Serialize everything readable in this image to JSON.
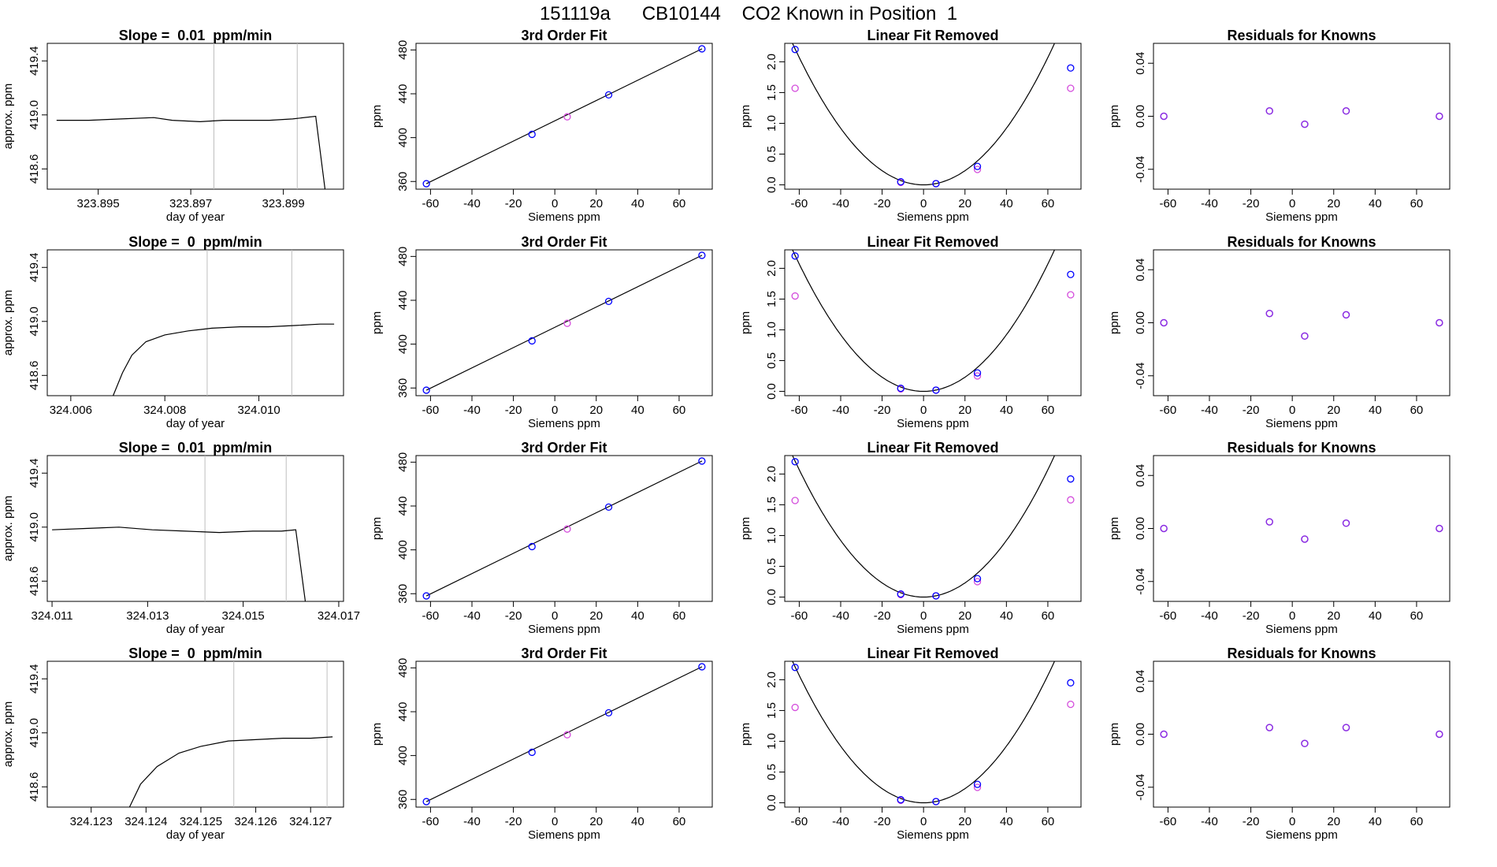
{
  "page": {
    "title": "151119a      CB10144    CO2 Known in Position  1"
  },
  "colors": {
    "axis": "#000000",
    "grid_line": "#bebebe",
    "fit_line": "#000000",
    "point_blue": "#0000ff",
    "point_magenta": "#d44ddc",
    "point_cyan": "#00b4d2",
    "point_purple": "#8a2be2"
  },
  "chart_data": [
    {
      "type": "line",
      "row": 1,
      "title": "Slope =  0.01  ppm/min",
      "xlabel": "day of year",
      "ylabel": "approx. ppm",
      "xlim": [
        323.8939,
        323.9003
      ],
      "ylim": [
        418.45,
        419.53
      ],
      "xticks": [
        "323.895",
        "323.897",
        "323.899"
      ],
      "xtick_values": [
        323.895,
        323.897,
        323.899
      ],
      "yticks": [
        "418.6",
        "419.0",
        "419.4"
      ],
      "ytick_values": [
        418.6,
        419.0,
        419.4
      ],
      "vlines": [
        323.8975,
        323.8993
      ],
      "series": [
        {
          "points": [
            [
              323.8941,
              418.96
            ],
            [
              323.8948,
              418.96
            ],
            [
              323.8955,
              418.97
            ],
            [
              323.8962,
              418.98
            ],
            [
              323.8966,
              418.96
            ],
            [
              323.8972,
              418.95
            ],
            [
              323.8977,
              418.96
            ],
            [
              323.8982,
              418.96
            ],
            [
              323.8987,
              418.96
            ],
            [
              323.8992,
              418.97
            ],
            [
              323.8997,
              418.99
            ],
            [
              323.8999,
              418.45
            ]
          ]
        }
      ]
    },
    {
      "type": "scatter",
      "row": 1,
      "title": "3rd Order Fit",
      "xlabel": "Siemens ppm",
      "ylabel": "ppm",
      "xlim": [
        -67,
        76
      ],
      "ylim": [
        353,
        486
      ],
      "xticks": [
        "-60",
        "-40",
        "-20",
        "0",
        "20",
        "40",
        "60"
      ],
      "xtick_values": [
        -60,
        -40,
        -20,
        0,
        20,
        40,
        60
      ],
      "yticks": [
        "360",
        "400",
        "440",
        "480"
      ],
      "ytick_values": [
        360,
        400,
        440,
        480
      ],
      "line": [
        [
          -62,
          358
        ],
        [
          71,
          481
        ]
      ],
      "points_blue": [
        [
          -62,
          358
        ],
        [
          -11,
          403
        ],
        [
          26,
          439
        ],
        [
          71,
          481
        ]
      ],
      "points_magenta": [
        [
          6,
          419
        ]
      ]
    },
    {
      "type": "scatter",
      "row": 1,
      "title": "Linear Fit Removed",
      "xlabel": "Siemens ppm",
      "ylabel": "ppm",
      "xlim": [
        -67,
        76
      ],
      "ylim": [
        -0.07,
        2.3
      ],
      "xticks": [
        "-60",
        "-40",
        "-20",
        "0",
        "20",
        "40",
        "60"
      ],
      "xtick_values": [
        -60,
        -40,
        -20,
        0,
        20,
        40,
        60
      ],
      "yticks": [
        "0.0",
        "0.5",
        "1.0",
        "1.5",
        "2.0"
      ],
      "ytick_values": [
        0,
        0.5,
        1,
        1.5,
        2
      ],
      "curve_coefficient": 0.000575,
      "points_blue": [
        [
          -62,
          2.2
        ],
        [
          -11,
          0.05
        ],
        [
          6,
          0.02
        ],
        [
          26,
          0.3
        ],
        [
          71,
          1.9
        ]
      ],
      "points_magenta": [
        [
          -62,
          1.57
        ],
        [
          -11,
          0.04
        ],
        [
          6,
          0.02
        ],
        [
          26,
          0.25
        ],
        [
          71,
          1.57
        ]
      ]
    },
    {
      "type": "scatter",
      "row": 1,
      "title": "Residuals for Knowns",
      "xlabel": "Siemens ppm",
      "ylabel": "ppm",
      "xlim": [
        -67,
        76
      ],
      "ylim": [
        -0.055,
        0.055
      ],
      "xticks": [
        "-60",
        "-40",
        "-20",
        "0",
        "20",
        "40",
        "60"
      ],
      "xtick_values": [
        -60,
        -40,
        -20,
        0,
        20,
        40,
        60
      ],
      "yticks": [
        "-0.04",
        "0.00",
        "0.04"
      ],
      "ytick_values": [
        -0.04,
        0,
        0.04
      ],
      "points_purple": [
        [
          -62,
          0.0
        ],
        [
          -11,
          0.004
        ],
        [
          6,
          -0.006
        ],
        [
          26,
          0.004
        ],
        [
          71,
          0.0
        ]
      ]
    },
    {
      "type": "line",
      "row": 2,
      "title": "Slope =  0  ppm/min",
      "xlabel": "day of year",
      "ylabel": "approx. ppm",
      "xlim": [
        324.0055,
        324.0118
      ],
      "ylim": [
        418.45,
        419.53
      ],
      "xticks": [
        "324.006",
        "324.008",
        "324.010"
      ],
      "xtick_values": [
        324.006,
        324.008,
        324.01
      ],
      "yticks": [
        "418.6",
        "419.0",
        "419.4"
      ],
      "ytick_values": [
        418.6,
        419.0,
        419.4
      ],
      "vlines": [
        324.0089,
        324.0107
      ],
      "series": [
        {
          "points": [
            [
              324.0069,
              418.45
            ],
            [
              324.0071,
              418.62
            ],
            [
              324.0073,
              418.75
            ],
            [
              324.0076,
              418.85
            ],
            [
              324.008,
              418.9
            ],
            [
              324.0085,
              418.93
            ],
            [
              324.009,
              418.95
            ],
            [
              324.0096,
              418.96
            ],
            [
              324.0102,
              418.96
            ],
            [
              324.0108,
              418.97
            ],
            [
              324.0113,
              418.98
            ],
            [
              324.0116,
              418.98
            ]
          ]
        }
      ]
    },
    {
      "type": "scatter",
      "row": 2,
      "title": "3rd Order Fit",
      "xlabel": "Siemens ppm",
      "ylabel": "ppm",
      "xlim": [
        -67,
        76
      ],
      "ylim": [
        353,
        486
      ],
      "xticks": [
        "-60",
        "-40",
        "-20",
        "0",
        "20",
        "40",
        "60"
      ],
      "xtick_values": [
        -60,
        -40,
        -20,
        0,
        20,
        40,
        60
      ],
      "yticks": [
        "360",
        "400",
        "440",
        "480"
      ],
      "ytick_values": [
        360,
        400,
        440,
        480
      ],
      "line": [
        [
          -62,
          358
        ],
        [
          71,
          481
        ]
      ],
      "points_blue": [
        [
          -62,
          358
        ],
        [
          -11,
          403
        ],
        [
          26,
          439
        ],
        [
          71,
          481
        ]
      ],
      "points_magenta": [
        [
          6,
          419
        ]
      ]
    },
    {
      "type": "scatter",
      "row": 2,
      "title": "Linear Fit Removed",
      "xlabel": "Siemens ppm",
      "ylabel": "ppm",
      "xlim": [
        -67,
        76
      ],
      "ylim": [
        -0.07,
        2.3
      ],
      "xticks": [
        "-60",
        "-40",
        "-20",
        "0",
        "20",
        "40",
        "60"
      ],
      "xtick_values": [
        -60,
        -40,
        -20,
        0,
        20,
        40,
        60
      ],
      "yticks": [
        "0.0",
        "0.5",
        "1.0",
        "1.5",
        "2.0"
      ],
      "ytick_values": [
        0,
        0.5,
        1,
        1.5,
        2
      ],
      "curve_coefficient": 0.000575,
      "points_blue": [
        [
          -62,
          2.2
        ],
        [
          -11,
          0.05
        ],
        [
          6,
          0.02
        ],
        [
          26,
          0.3
        ],
        [
          71,
          1.9
        ]
      ],
      "points_magenta": [
        [
          -62,
          1.55
        ],
        [
          -11,
          0.04
        ],
        [
          6,
          0.02
        ],
        [
          26,
          0.25
        ],
        [
          71,
          1.57
        ]
      ]
    },
    {
      "type": "scatter",
      "row": 2,
      "title": "Residuals for Knowns",
      "xlabel": "Siemens ppm",
      "ylabel": "ppm",
      "xlim": [
        -67,
        76
      ],
      "ylim": [
        -0.055,
        0.055
      ],
      "xticks": [
        "-60",
        "-40",
        "-20",
        "0",
        "20",
        "40",
        "60"
      ],
      "xtick_values": [
        -60,
        -40,
        -20,
        0,
        20,
        40,
        60
      ],
      "yticks": [
        "-0.04",
        "0.00",
        "0.04"
      ],
      "ytick_values": [
        -0.04,
        0,
        0.04
      ],
      "points_purple": [
        [
          -62,
          0.0
        ],
        [
          -11,
          0.007
        ],
        [
          6,
          -0.01
        ],
        [
          26,
          0.006
        ],
        [
          71,
          0.0
        ]
      ]
    },
    {
      "type": "line",
      "row": 3,
      "title": "Slope =  0.01  ppm/min",
      "xlabel": "day of year",
      "ylabel": "approx. ppm",
      "xlim": [
        324.0109,
        324.0171
      ],
      "ylim": [
        418.45,
        419.53
      ],
      "xticks": [
        "324.011",
        "324.013",
        "324.015",
        "324.017"
      ],
      "xtick_values": [
        324.011,
        324.013,
        324.015,
        324.017
      ],
      "yticks": [
        "418.6",
        "419.0",
        "419.4"
      ],
      "ytick_values": [
        418.6,
        419.0,
        419.4
      ],
      "vlines": [
        324.0142,
        324.0159
      ],
      "series": [
        {
          "points": [
            [
              324.011,
              418.98
            ],
            [
              324.0117,
              418.99
            ],
            [
              324.0124,
              419.0
            ],
            [
              324.0131,
              418.98
            ],
            [
              324.0138,
              418.97
            ],
            [
              324.0145,
              418.96
            ],
            [
              324.0152,
              418.97
            ],
            [
              324.0158,
              418.97
            ],
            [
              324.0161,
              418.98
            ],
            [
              324.0163,
              418.45
            ]
          ]
        }
      ]
    },
    {
      "type": "scatter",
      "row": 3,
      "title": "3rd Order Fit",
      "xlabel": "Siemens ppm",
      "ylabel": "ppm",
      "xlim": [
        -67,
        76
      ],
      "ylim": [
        353,
        486
      ],
      "xticks": [
        "-60",
        "-40",
        "-20",
        "0",
        "20",
        "40",
        "60"
      ],
      "xtick_values": [
        -60,
        -40,
        -20,
        0,
        20,
        40,
        60
      ],
      "yticks": [
        "360",
        "400",
        "440",
        "480"
      ],
      "ytick_values": [
        360,
        400,
        440,
        480
      ],
      "line": [
        [
          -62,
          358
        ],
        [
          71,
          481
        ]
      ],
      "points_blue": [
        [
          -62,
          358
        ],
        [
          -11,
          403
        ],
        [
          26,
          439
        ],
        [
          71,
          481
        ]
      ],
      "points_magenta": [
        [
          6,
          419
        ]
      ]
    },
    {
      "type": "scatter",
      "row": 3,
      "title": "Linear Fit Removed",
      "xlabel": "Siemens ppm",
      "ylabel": "ppm",
      "xlim": [
        -67,
        76
      ],
      "ylim": [
        -0.07,
        2.3
      ],
      "xticks": [
        "-60",
        "-40",
        "-20",
        "0",
        "20",
        "40",
        "60"
      ],
      "xtick_values": [
        -60,
        -40,
        -20,
        0,
        20,
        40,
        60
      ],
      "yticks": [
        "0.0",
        "0.5",
        "1.0",
        "1.5",
        "2.0"
      ],
      "ytick_values": [
        0,
        0.5,
        1,
        1.5,
        2
      ],
      "curve_coefficient": 0.000575,
      "points_blue": [
        [
          -62,
          2.2
        ],
        [
          -11,
          0.05
        ],
        [
          6,
          0.02
        ],
        [
          26,
          0.3
        ],
        [
          71,
          1.92
        ]
      ],
      "points_magenta": [
        [
          -62,
          1.57
        ],
        [
          -11,
          0.04
        ],
        [
          6,
          0.02
        ],
        [
          26,
          0.25
        ],
        [
          71,
          1.58
        ]
      ]
    },
    {
      "type": "scatter",
      "row": 3,
      "title": "Residuals for Knowns",
      "xlabel": "Siemens ppm",
      "ylabel": "ppm",
      "xlim": [
        -67,
        76
      ],
      "ylim": [
        -0.055,
        0.055
      ],
      "xticks": [
        "-60",
        "-40",
        "-20",
        "0",
        "20",
        "40",
        "60"
      ],
      "xtick_values": [
        -60,
        -40,
        -20,
        0,
        20,
        40,
        60
      ],
      "yticks": [
        "-0.04",
        "0.00",
        "0.04"
      ],
      "ytick_values": [
        -0.04,
        0,
        0.04
      ],
      "points_purple": [
        [
          -62,
          0.0
        ],
        [
          -11,
          0.005
        ],
        [
          6,
          -0.008
        ],
        [
          26,
          0.004
        ],
        [
          71,
          0.0
        ]
      ]
    },
    {
      "type": "line",
      "row": 4,
      "title": "Slope =  0  ppm/min",
      "xlabel": "day of year",
      "ylabel": "approx. ppm",
      "xlim": [
        324.1222,
        324.1276
      ],
      "ylim": [
        418.45,
        419.53
      ],
      "xticks": [
        "324.123",
        "324.124",
        "324.125",
        "324.126",
        "324.127"
      ],
      "xtick_values": [
        324.123,
        324.124,
        324.125,
        324.126,
        324.127
      ],
      "yticks": [
        "418.6",
        "419.0",
        "419.4"
      ],
      "ytick_values": [
        418.6,
        419.0,
        419.4
      ],
      "vlines": [
        324.1256,
        324.1273
      ],
      "series": [
        {
          "points": [
            [
              324.1237,
              418.45
            ],
            [
              324.1239,
              418.62
            ],
            [
              324.1242,
              418.75
            ],
            [
              324.1246,
              418.85
            ],
            [
              324.125,
              418.9
            ],
            [
              324.1255,
              418.94
            ],
            [
              324.126,
              418.95
            ],
            [
              324.1265,
              418.96
            ],
            [
              324.127,
              418.96
            ],
            [
              324.1274,
              418.97
            ]
          ]
        }
      ]
    },
    {
      "type": "scatter",
      "row": 4,
      "title": "3rd Order Fit",
      "xlabel": "Siemens ppm",
      "ylabel": "ppm",
      "xlim": [
        -67,
        76
      ],
      "ylim": [
        353,
        486
      ],
      "xticks": [
        "-60",
        "-40",
        "-20",
        "0",
        "20",
        "40",
        "60"
      ],
      "xtick_values": [
        -60,
        -40,
        -20,
        0,
        20,
        40,
        60
      ],
      "yticks": [
        "360",
        "400",
        "440",
        "480"
      ],
      "ytick_values": [
        360,
        400,
        440,
        480
      ],
      "line": [
        [
          -62,
          358
        ],
        [
          71,
          481
        ]
      ],
      "points_blue": [
        [
          -62,
          358
        ],
        [
          -11,
          403
        ],
        [
          26,
          439
        ],
        [
          71,
          481
        ]
      ],
      "points_magenta": [
        [
          6,
          419
        ]
      ]
    },
    {
      "type": "scatter",
      "row": 4,
      "title": "Linear Fit Removed",
      "xlabel": "Siemens ppm",
      "ylabel": "ppm",
      "xlim": [
        -67,
        76
      ],
      "ylim": [
        -0.07,
        2.3
      ],
      "xticks": [
        "-60",
        "-40",
        "-20",
        "0",
        "20",
        "40",
        "60"
      ],
      "xtick_values": [
        -60,
        -40,
        -20,
        0,
        20,
        40,
        60
      ],
      "yticks": [
        "0.0",
        "0.5",
        "1.0",
        "1.5",
        "2.0"
      ],
      "ytick_values": [
        0,
        0.5,
        1,
        1.5,
        2
      ],
      "curve_coefficient": 0.000575,
      "points_blue": [
        [
          -62,
          2.2
        ],
        [
          -11,
          0.05
        ],
        [
          6,
          0.02
        ],
        [
          26,
          0.3
        ],
        [
          71,
          1.95
        ]
      ],
      "points_magenta": [
        [
          -62,
          1.55
        ],
        [
          -11,
          0.04
        ],
        [
          6,
          0.02
        ],
        [
          26,
          0.25
        ],
        [
          71,
          1.6
        ]
      ]
    },
    {
      "type": "scatter",
      "row": 4,
      "title": "Residuals for Knowns",
      "xlabel": "Siemens ppm",
      "ylabel": "ppm",
      "xlim": [
        -67,
        76
      ],
      "ylim": [
        -0.055,
        0.055
      ],
      "xticks": [
        "-60",
        "-40",
        "-20",
        "0",
        "20",
        "40",
        "60"
      ],
      "xtick_values": [
        -60,
        -40,
        -20,
        0,
        20,
        40,
        60
      ],
      "yticks": [
        "-0.04",
        "0.00",
        "0.04"
      ],
      "ytick_values": [
        -0.04,
        0,
        0.04
      ],
      "points_purple": [
        [
          -62,
          0.0
        ],
        [
          -11,
          0.005
        ],
        [
          6,
          -0.007
        ],
        [
          26,
          0.005
        ],
        [
          71,
          0.0
        ]
      ]
    }
  ]
}
